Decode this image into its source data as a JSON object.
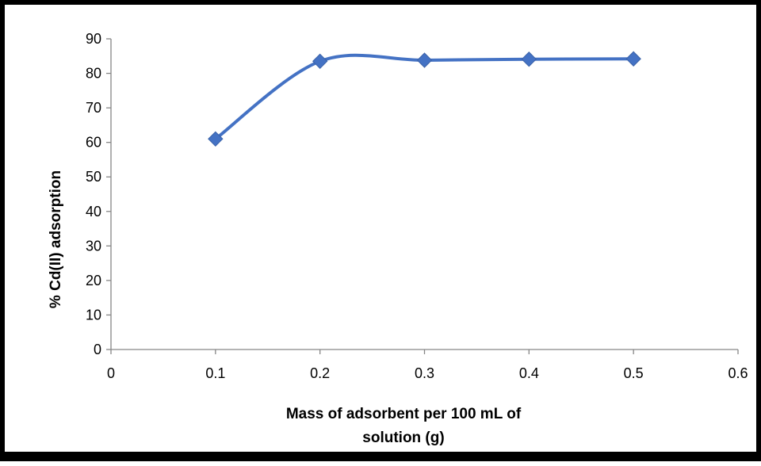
{
  "chart_data": {
    "type": "scatter",
    "title": "",
    "xlabel_lines": [
      "Mass of adsorbent per 100 mL of",
      "solution (g)"
    ],
    "ylabel": "% Cd(II) adsorption",
    "xlim": [
      0,
      0.6
    ],
    "ylim": [
      0,
      90
    ],
    "xticks": [
      "0",
      "0.1",
      "0.2",
      "0.3",
      "0.4",
      "0.5",
      "0.6"
    ],
    "yticks": [
      "0",
      "10",
      "20",
      "30",
      "40",
      "50",
      "60",
      "70",
      "80",
      "90"
    ],
    "grid": false,
    "legend": "none",
    "line_style": "smooth",
    "marker": "diamond",
    "series_color": "#4472C4",
    "x": [
      0.1,
      0.2,
      0.3,
      0.4,
      0.5
    ],
    "y": [
      61.0,
      83.5,
      83.8,
      84.1,
      84.2
    ]
  }
}
